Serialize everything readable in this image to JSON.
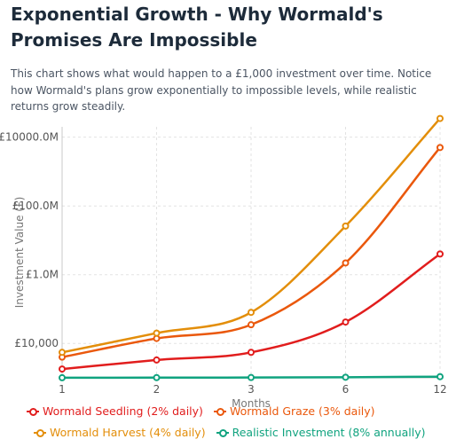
{
  "page": {
    "title": "Exponential Growth - Why Wormald's Promises Are Impossible",
    "description": "This chart shows what would happen to a £1,000 investment over time. Notice how Wormald's plans grow exponentially to impossible levels, while realistic returns grow steadily."
  },
  "chart_data": {
    "type": "line",
    "title": "",
    "xlabel": "Months",
    "ylabel": "Investment Value (£)",
    "categories": [
      "1",
      "2",
      "3",
      "6",
      "12"
    ],
    "y_scale": "log",
    "ylim": [
      1000,
      20000000000
    ],
    "yticks": [
      10000,
      1000000,
      100000000,
      10000000000
    ],
    "ytick_labels": [
      "£10,000",
      "£1.0M",
      "£100.0M",
      "£10000.0M"
    ],
    "grid": true,
    "legend_position": "bottom",
    "series": [
      {
        "name": "Wormald Seedling (2% daily)",
        "color": "#e11d1d",
        "values": [
          1800,
          3300,
          5500,
          42000,
          4000000
        ]
      },
      {
        "name": "Wormald Graze (3% daily)",
        "color": "#ea580c",
        "values": [
          4000,
          14000,
          35000,
          2200000,
          5000000000
        ]
      },
      {
        "name": "Wormald Harvest (4% daily)",
        "color": "#e38e0a",
        "values": [
          5500,
          20000,
          80000,
          26000000,
          35000000000
        ]
      },
      {
        "name": "Realistic Investment (8% annually)",
        "color": "#10a37f",
        "values": [
          1006,
          1013,
          1019,
          1039,
          1080
        ]
      }
    ]
  }
}
